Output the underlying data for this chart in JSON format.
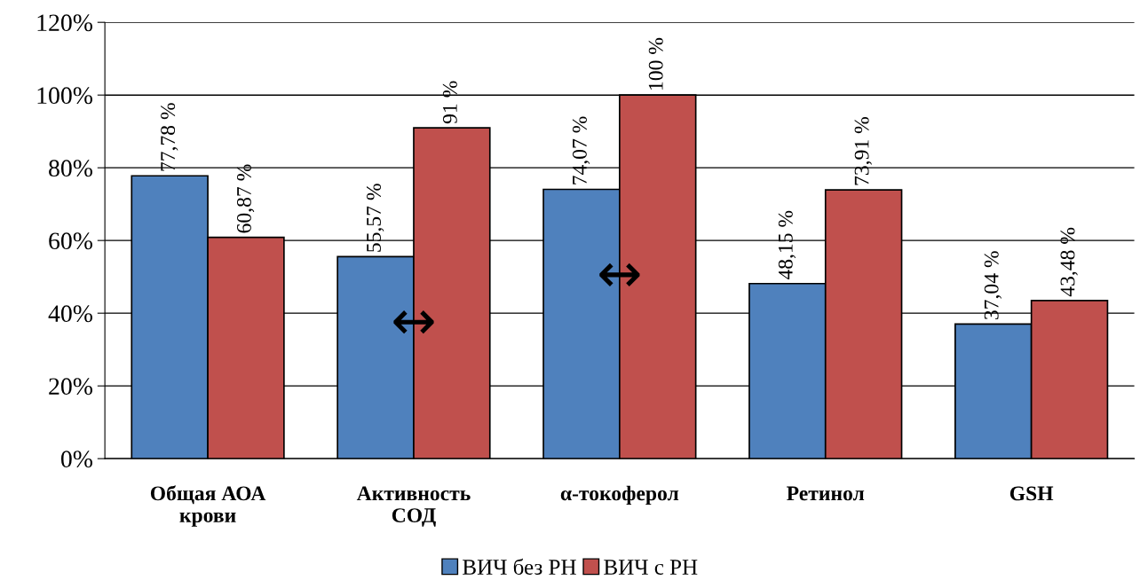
{
  "chart_data": {
    "type": "bar",
    "categories": [
      "Общая АОА\nкрови",
      "Активность\nСОД",
      "α-токоферол",
      "Ретинол",
      "GSH"
    ],
    "series": [
      {
        "name": "ВИЧ без РН",
        "color": "#4f81bd",
        "values": [
          77.78,
          55.57,
          74.07,
          48.15,
          37.04
        ],
        "value_labels": [
          "77,78 %",
          "55,57 %",
          "74,07 %",
          "48,15 %",
          "37,04 %"
        ]
      },
      {
        "name": "ВИЧ с РН",
        "color": "#c0504d",
        "values": [
          60.87,
          91,
          100,
          73.91,
          43.48
        ],
        "value_labels": [
          "60,87 %",
          "91 %",
          "100 %",
          "73,91 %",
          "43,48 %"
        ]
      }
    ],
    "ylim": [
      0,
      120
    ],
    "yticks": [
      {
        "value": 0,
        "label": "0%"
      },
      {
        "value": 20,
        "label": "20%"
      },
      {
        "value": 40,
        "label": "40%"
      },
      {
        "value": 60,
        "label": "60%"
      },
      {
        "value": 80,
        "label": "80%"
      },
      {
        "value": 100,
        "label": "100%"
      },
      {
        "value": 120,
        "label": "120%"
      }
    ],
    "grid": "y",
    "legend": "bottom",
    "annotations": [
      {
        "text": "↔",
        "x": "Активность\nСОД",
        "y": 37
      },
      {
        "text": "↔",
        "x": "α-токоферол",
        "y": 50
      }
    ]
  }
}
